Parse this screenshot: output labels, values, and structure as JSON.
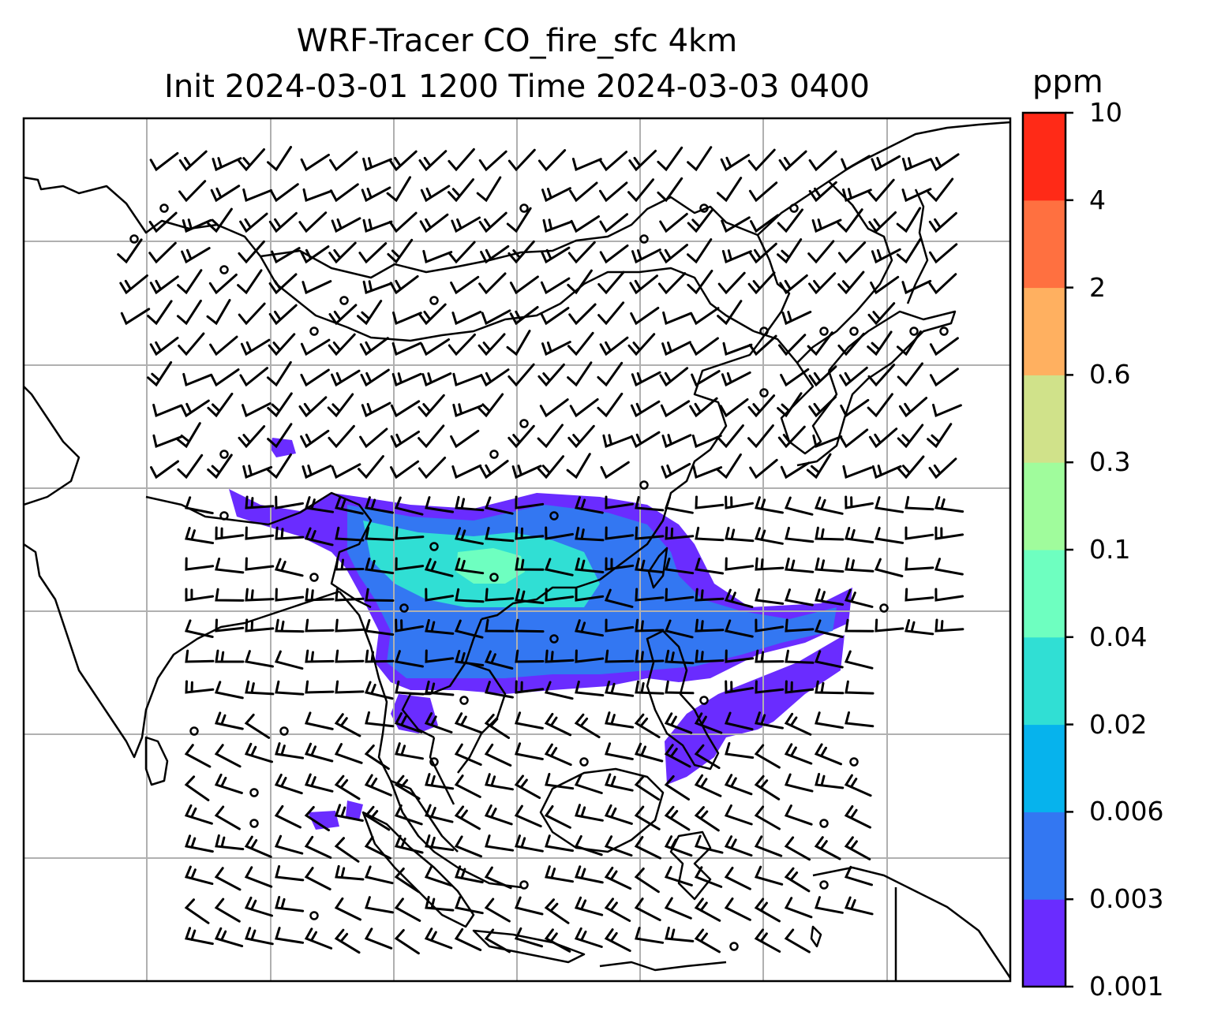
{
  "title": {
    "line1": "WRF-Tracer CO_fire_sfc 4km",
    "line2": "Init 2024-03-01 1200 Time 2024-03-03 0400"
  },
  "colorbar": {
    "units": "ppm",
    "levels": [
      "0.001",
      "0.003",
      "0.006",
      "0.02",
      "0.04",
      "0.1",
      "0.3",
      "0.6",
      "2",
      "4",
      "10"
    ],
    "colors": [
      "#6a2cff",
      "#3377f2",
      "#06b3ed",
      "#30dfd4",
      "#6effc0",
      "#a0fc9c",
      "#d0e28a",
      "#ffb060",
      "#ff7040",
      "#ff2a17"
    ]
  },
  "map": {
    "gridlines": true,
    "plume_colors": {
      "outer": "#6a2cff",
      "mid": "#3377f2",
      "core": "#30dfd4",
      "peak": "#6effc0"
    },
    "coastline_color": "#000000",
    "barb_color": "#000000"
  }
}
